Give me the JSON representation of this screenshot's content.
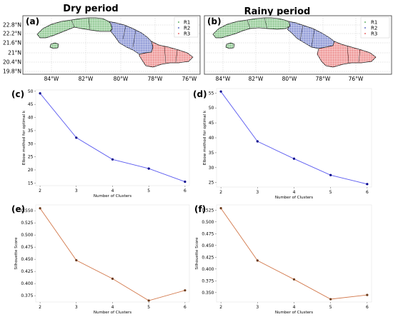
{
  "titles": {
    "left": "Dry period",
    "right": "Rainy period"
  },
  "maps": [
    {
      "label": "(a)",
      "legend": [
        "R1",
        "R2",
        "R3"
      ]
    },
    {
      "label": "(b)",
      "legend": [
        "R1",
        "R2",
        "R3"
      ]
    }
  ],
  "map_axes": {
    "lat_ticks": [
      "22.8°N",
      "22.2°N",
      "21.6°N",
      "21°N",
      "20.4°N",
      "19.8°N"
    ],
    "lon_ticks": [
      "84°W",
      "82°W",
      "80°W",
      "78°W",
      "76°W"
    ]
  },
  "region_colors": {
    "R1": "#4caf50",
    "R2": "#3f51b5",
    "R3": "#e53935"
  },
  "chart_data": [
    {
      "label": "(c)",
      "type": "line",
      "x": [
        2,
        3,
        4,
        5,
        6
      ],
      "y": [
        49.2,
        32.3,
        24.0,
        20.5,
        15.5
      ],
      "xlabel": "Number of Clusters",
      "ylabel": "Elbow method for optimal k",
      "yticks": [
        15,
        20,
        25,
        30,
        35,
        40,
        45,
        50
      ],
      "ylim": [
        14,
        50.5
      ],
      "color": "#5b5bf0",
      "marker": "#00008b"
    },
    {
      "label": "(d)",
      "type": "line",
      "x": [
        2,
        3,
        4,
        5,
        6
      ],
      "y": [
        55.5,
        38.8,
        33.0,
        27.5,
        24.5
      ],
      "xlabel": "Number of Clusters",
      "ylabel": "Elbow method for optimal k",
      "yticks": [
        25,
        30,
        35,
        40,
        45,
        50,
        55
      ],
      "ylim": [
        23.5,
        56.5
      ],
      "color": "#5b5bf0",
      "marker": "#00008b"
    },
    {
      "label": "(e)",
      "type": "line",
      "x": [
        2,
        3,
        4,
        5,
        6
      ],
      "y": [
        0.555,
        0.448,
        0.41,
        0.365,
        0.386
      ],
      "xlabel": "Number of Clusters",
      "ylabel": "Silhouette Score",
      "yticks": [
        0.375,
        0.4,
        0.425,
        0.45,
        0.475,
        0.5,
        0.525,
        0.55
      ],
      "ytick_labels": [
        "0.375",
        "0.400",
        "0.425",
        "0.450",
        "0.475",
        "0.500",
        "0.525",
        "0.550"
      ],
      "ylim": [
        0.362,
        0.562
      ],
      "color": "#d2784b",
      "marker": "#6b3a1a"
    },
    {
      "label": "(f)",
      "type": "line",
      "x": [
        2,
        3,
        4,
        5,
        6
      ],
      "y": [
        0.529,
        0.418,
        0.378,
        0.336,
        0.345
      ],
      "xlabel": "Number of Clusters",
      "ylabel": "Silhouette Score",
      "yticks": [
        0.35,
        0.375,
        0.4,
        0.425,
        0.45,
        0.475,
        0.5,
        0.525
      ],
      "ytick_labels": [
        "0.350",
        "0.375",
        "0.400",
        "0.425",
        "0.450",
        "0.475",
        "0.500",
        "0.525"
      ],
      "ylim": [
        0.33,
        0.536
      ],
      "color": "#d2784b",
      "marker": "#6b3a1a"
    }
  ]
}
